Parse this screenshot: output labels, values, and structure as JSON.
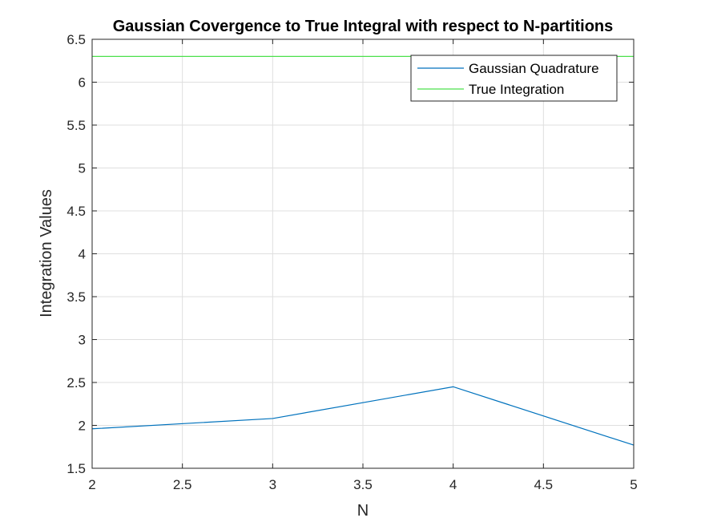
{
  "chart_data": {
    "type": "line",
    "title": "Gaussian Covergence to True Integral with respect to N-partitions",
    "xlabel": "N",
    "ylabel": "Integration Values",
    "xlim": [
      2,
      5
    ],
    "ylim": [
      1.5,
      6.5
    ],
    "xticks": [
      "2",
      "2.5",
      "3",
      "3.5",
      "4",
      "4.5",
      "5"
    ],
    "yticks": [
      "1.5",
      "2",
      "2.5",
      "3",
      "3.5",
      "4",
      "4.5",
      "5",
      "5.5",
      "6",
      "6.5"
    ],
    "grid": true,
    "legend_position": "top-right",
    "series": [
      {
        "name": "Gaussian Quadrature",
        "color": "#0072BD",
        "x": [
          2,
          3,
          4,
          5
        ],
        "y": [
          1.96,
          2.08,
          2.45,
          1.77
        ]
      },
      {
        "name": "True Integration",
        "color": "#4CE04C",
        "x": [
          2,
          5
        ],
        "y": [
          6.3,
          6.3
        ]
      }
    ]
  }
}
